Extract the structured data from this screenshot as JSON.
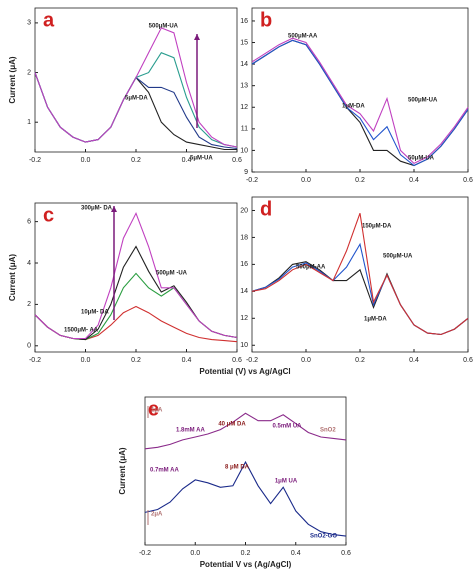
{
  "chart_data": [
    {
      "type": "line",
      "label": "a",
      "ylabel": "Current (μA)",
      "x": [
        -0.2,
        -0.15,
        -0.1,
        -0.05,
        0,
        0.05,
        0.1,
        0.15,
        0.2,
        0.25,
        0.3,
        0.35,
        0.4,
        0.45,
        0.5,
        0.55,
        0.6
      ],
      "xlim": [
        -0.2,
        0.6
      ],
      "xticks": [
        -0.2,
        {
          "value": 0,
          "label": "0.0"
        },
        0.2,
        0.4,
        0.6
      ],
      "ylim": [
        0.4,
        3.3
      ],
      "yticks": [
        1,
        2,
        3
      ],
      "series": [
        {
          "color": "#222222",
          "values": [
            2.0,
            1.3,
            0.9,
            0.7,
            0.6,
            0.65,
            0.9,
            1.45,
            1.9,
            1.6,
            1.0,
            0.75,
            0.6,
            0.55,
            0.5,
            0.45,
            0.45
          ]
        },
        {
          "color": "#223a8a",
          "values": [
            2.0,
            1.3,
            0.9,
            0.7,
            0.6,
            0.65,
            0.9,
            1.45,
            1.9,
            1.7,
            1.7,
            1.6,
            1.1,
            0.7,
            0.55,
            0.5,
            0.47
          ]
        },
        {
          "color": "#2a9d8f",
          "values": [
            2.0,
            1.3,
            0.9,
            0.7,
            0.6,
            0.65,
            0.9,
            1.45,
            1.9,
            2.0,
            2.4,
            2.3,
            1.5,
            0.9,
            0.65,
            0.55,
            0.5
          ]
        },
        {
          "color": "#c040c0",
          "values": [
            2.0,
            1.3,
            0.9,
            0.7,
            0.6,
            0.65,
            0.9,
            1.45,
            1.9,
            2.4,
            2.9,
            2.8,
            1.8,
            1.0,
            0.7,
            0.55,
            0.5
          ]
        }
      ],
      "annotations": [
        "500μM-UA",
        "5μM-DA",
        "5μM-UA"
      ]
    },
    {
      "type": "line",
      "label": "b",
      "x": [
        -0.2,
        -0.15,
        -0.1,
        -0.05,
        0,
        0.05,
        0.1,
        0.15,
        0.2,
        0.25,
        0.3,
        0.35,
        0.4,
        0.45,
        0.5,
        0.55,
        0.6
      ],
      "xlim": [
        -0.2,
        0.6
      ],
      "xticks": [
        -0.2,
        {
          "value": 0,
          "label": "0.0"
        },
        0.2,
        0.4,
        0.6
      ],
      "ylim": [
        9,
        16.6
      ],
      "yticks": [
        9,
        10,
        11,
        12,
        13,
        14,
        15,
        16
      ],
      "series": [
        {
          "color": "#222222",
          "values": [
            14.0,
            14.4,
            14.8,
            15.1,
            14.9,
            14.0,
            13.0,
            12.0,
            11.3,
            10.0,
            10.0,
            9.5,
            9.3,
            9.6,
            10.2,
            11.0,
            11.9
          ]
        },
        {
          "color": "#2255cc",
          "values": [
            14.0,
            14.4,
            14.8,
            15.1,
            14.9,
            14.0,
            13.0,
            12.0,
            11.5,
            10.5,
            11.1,
            9.8,
            9.3,
            9.6,
            10.2,
            11.0,
            11.9
          ]
        },
        {
          "color": "#c040c0",
          "values": [
            14.1,
            14.5,
            14.9,
            15.2,
            15.0,
            14.1,
            13.1,
            12.1,
            11.7,
            10.9,
            12.4,
            10.0,
            9.4,
            9.7,
            10.3,
            11.1,
            12.0
          ]
        }
      ],
      "annotations": [
        "500μM-AA",
        "1μM-DA",
        "500μM-UA",
        "50μM-UA"
      ]
    },
    {
      "type": "line",
      "label": "c",
      "ylabel": "Current (μA)",
      "xlabel": "Potential (V) vs Ag/AgCl",
      "x": [
        -0.2,
        -0.15,
        -0.1,
        -0.05,
        0,
        0.05,
        0.1,
        0.15,
        0.2,
        0.25,
        0.3,
        0.35,
        0.4,
        0.45,
        0.5,
        0.55,
        0.6
      ],
      "xlim": [
        -0.2,
        0.6
      ],
      "xticks": [
        -0.2,
        {
          "value": 0,
          "label": "0.0"
        },
        0.2,
        0.4,
        0.6
      ],
      "ylim": [
        -0.3,
        6.9
      ],
      "yticks": [
        0,
        2,
        4,
        6
      ],
      "series": [
        {
          "color": "#d03030",
          "values": [
            1.5,
            0.9,
            0.5,
            0.35,
            0.3,
            0.5,
            1.0,
            1.6,
            1.9,
            1.6,
            1.2,
            0.9,
            0.6,
            0.4,
            0.3,
            0.25,
            0.2
          ]
        },
        {
          "color": "#2a9d40",
          "values": [
            1.5,
            0.9,
            0.5,
            0.35,
            0.3,
            0.6,
            1.5,
            2.8,
            3.5,
            2.8,
            2.4,
            2.8,
            2.0,
            1.2,
            0.7,
            0.5,
            0.4
          ]
        },
        {
          "color": "#222222",
          "values": [
            1.5,
            0.9,
            0.5,
            0.35,
            0.3,
            0.8,
            2.0,
            3.8,
            4.8,
            3.6,
            2.6,
            2.9,
            2.1,
            1.2,
            0.7,
            0.5,
            0.4
          ]
        },
        {
          "color": "#c040c0",
          "values": [
            1.5,
            0.9,
            0.5,
            0.35,
            0.35,
            1.0,
            2.8,
            5.2,
            6.4,
            4.8,
            2.8,
            2.8,
            2.0,
            1.2,
            0.7,
            0.5,
            0.4
          ]
        }
      ],
      "annotations": [
        "300μM- DA",
        "500μM -UA",
        "10μM- DA",
        "1500μM- AA"
      ]
    },
    {
      "type": "line",
      "label": "d",
      "x": [
        -0.2,
        -0.15,
        -0.1,
        -0.05,
        0,
        0.05,
        0.1,
        0.15,
        0.2,
        0.25,
        0.3,
        0.35,
        0.4,
        0.45,
        0.5,
        0.55,
        0.6
      ],
      "xlim": [
        -0.2,
        0.6
      ],
      "xticks": [
        -0.2,
        {
          "value": 0,
          "label": "0.0"
        },
        0.2,
        0.4,
        0.6
      ],
      "ylim": [
        9.5,
        21
      ],
      "yticks": [
        10,
        12,
        14,
        16,
        18,
        20
      ],
      "series": [
        {
          "color": "#222222",
          "values": [
            14.0,
            14.3,
            15.0,
            16.0,
            16.2,
            15.6,
            14.8,
            14.8,
            15.6,
            12.8,
            15.3,
            13.0,
            11.5,
            10.9,
            10.8,
            11.2,
            12.0
          ]
        },
        {
          "color": "#2255cc",
          "values": [
            14.0,
            14.3,
            14.9,
            15.8,
            16.1,
            15.5,
            14.8,
            15.8,
            17.5,
            13.0,
            15.2,
            13.0,
            11.5,
            10.9,
            10.8,
            11.2,
            12.0
          ]
        },
        {
          "color": "#d03030",
          "values": [
            14.0,
            14.2,
            14.8,
            15.6,
            16.0,
            15.4,
            14.8,
            17.0,
            19.8,
            13.2,
            15.2,
            13.0,
            11.5,
            10.9,
            10.8,
            11.2,
            12.0
          ]
        }
      ],
      "annotations": [
        "150μM-DA",
        "500μM-AA",
        "500μM-UA",
        "1μM-DA"
      ]
    },
    {
      "type": "line",
      "label": "e",
      "ylabel": "Current (μA)",
      "xlabel": "Potential V vs (Ag/AgCl)",
      "x": [
        -0.2,
        -0.15,
        -0.1,
        -0.05,
        0,
        0.05,
        0.1,
        0.15,
        0.2,
        0.25,
        0.3,
        0.35,
        0.4,
        0.45,
        0.5,
        0.55,
        0.6
      ],
      "xlim": [
        -0.2,
        0.6
      ],
      "xticks": [
        -0.2,
        {
          "value": 0,
          "label": "0.0"
        },
        0.2,
        0.4,
        0.6
      ],
      "ylim": [
        0,
        10
      ],
      "series": [
        {
          "color": "#8a2a8a",
          "values": [
            6.5,
            6.6,
            6.8,
            7.1,
            7.3,
            7.5,
            7.8,
            8.3,
            8.9,
            8.4,
            8.4,
            8.8,
            8.2,
            7.6,
            7.3,
            7.2,
            7.1
          ]
        },
        {
          "color": "#1a2a8a",
          "values": [
            2.2,
            2.4,
            2.9,
            3.8,
            4.4,
            4.2,
            3.9,
            4.0,
            5.6,
            4.0,
            2.8,
            3.9,
            2.3,
            1.4,
            0.9,
            0.7,
            0.6
          ]
        }
      ],
      "annotations": [
        "40 μM DA",
        "0.5mM UA",
        "1.8mM AA",
        "SnO2",
        "0.7mM AA",
        "8 μM DA",
        "1μM UA",
        "SnO2-GO",
        "1μA",
        "2μA"
      ]
    }
  ]
}
